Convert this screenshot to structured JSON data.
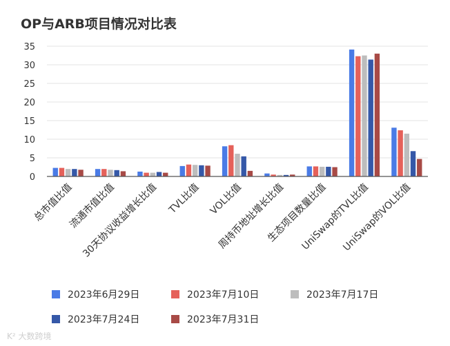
{
  "chart_data": {
    "type": "bar",
    "title": "OP与ARB项目情况对比表",
    "categories": [
      "总市值比值",
      "流通市值比值",
      "30天协议收益增长比值",
      "TVL比值",
      "VOL比值",
      "周持币地址增长比值",
      "生态项目数量比值",
      "UniSwap的TVL比值",
      "UniSwap的VOL比值"
    ],
    "series": [
      {
        "name": "2023年6月29日",
        "color": "#4a7be6",
        "values": [
          2.3,
          2.0,
          1.3,
          2.8,
          8.1,
          0.8,
          2.7,
          34.1,
          13.1
        ]
      },
      {
        "name": "2023年7月10日",
        "color": "#e5615a",
        "values": [
          2.3,
          2.0,
          1.0,
          3.2,
          8.4,
          0.5,
          2.7,
          32.3,
          12.4
        ]
      },
      {
        "name": "2023年7月17日",
        "color": "#bdbdbd",
        "values": [
          2.0,
          1.8,
          1.0,
          3.1,
          6.1,
          0.4,
          2.6,
          32.5,
          11.5
        ]
      },
      {
        "name": "2023年7月24日",
        "color": "#3558a8",
        "values": [
          2.0,
          1.7,
          1.2,
          3.0,
          5.4,
          0.4,
          2.6,
          31.4,
          6.8
        ]
      },
      {
        "name": "2023年7月31日",
        "color": "#a84a46",
        "values": [
          1.8,
          1.4,
          1.0,
          2.9,
          1.5,
          0.5,
          2.5,
          33.0,
          4.7
        ]
      }
    ],
    "ylim": [
      0,
      35
    ],
    "yticks": [
      "0",
      "5",
      "10",
      "15",
      "20",
      "25",
      "30",
      "35"
    ],
    "grid": true,
    "legend_position": "bottom"
  },
  "watermark": "K² 大数跨境"
}
